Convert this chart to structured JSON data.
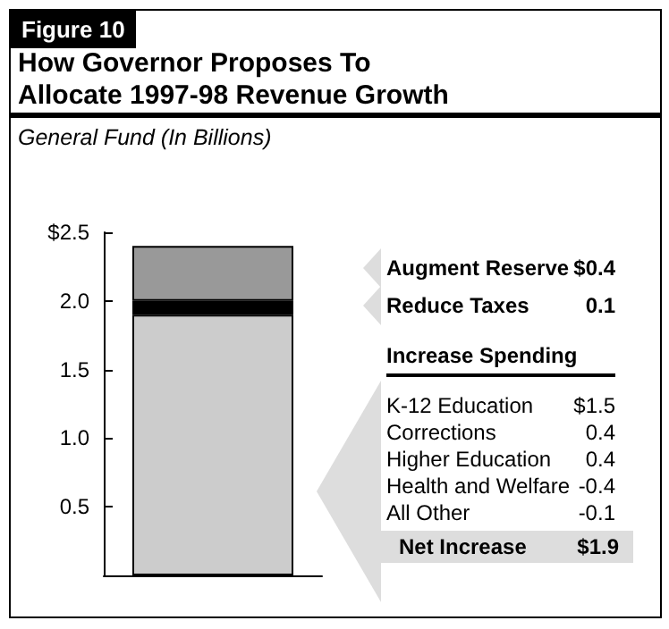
{
  "chart_data": {
    "type": "bar",
    "stacked": true,
    "title": "How Governor Proposes To Allocate 1997-98 Revenue Growth",
    "subtitle": "General Fund (In Billions)",
    "categories": [
      null
    ],
    "series": [
      {
        "color": "#cccccc",
        "values": [
          1.9
        ]
      },
      {
        "color": "#000000",
        "values": [
          0.1
        ]
      },
      {
        "color": "#999999",
        "values": [
          0.4
        ]
      }
    ],
    "ylim": [
      0,
      2.5
    ],
    "yticks": [
      {
        "value": 0.5,
        "label": "0.5"
      },
      {
        "value": 1,
        "label": "1.0"
      },
      {
        "value": 1.5,
        "label": "1.5"
      },
      {
        "value": 2,
        "label": "2.0"
      },
      {
        "value": 2.5,
        "label": "$2.5"
      }
    ],
    "grid": false,
    "annotations": [
      "Figure 10",
      "Augment Reserve $0.4",
      "Reduce Taxes 0.1",
      "Increase Spending",
      "K-12 Education $1.5",
      "Corrections 0.4",
      "Higher Education 0.4",
      "Health and Welfare -0.4",
      "All Other -0.1",
      "Net Increase $1.9"
    ]
  }
}
